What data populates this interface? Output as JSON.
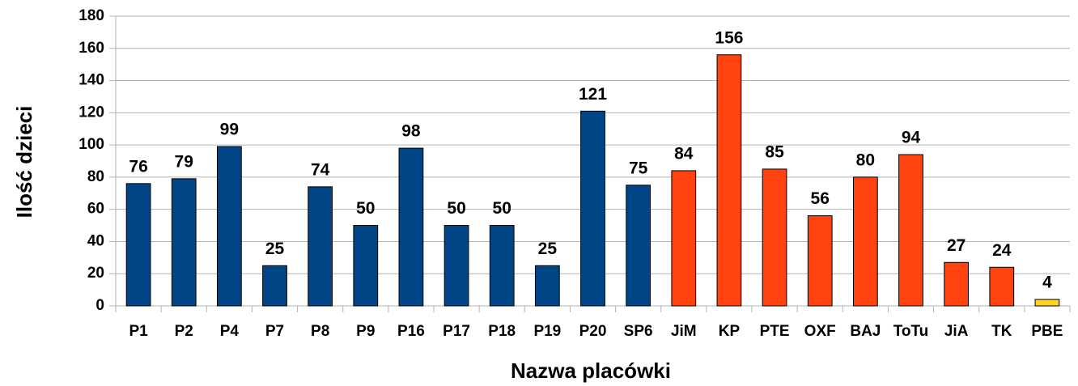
{
  "chart_data": {
    "type": "bar",
    "categories": [
      "P1",
      "P2",
      "P4",
      "P7",
      "P8",
      "P9",
      "P16",
      "P17",
      "P18",
      "P19",
      "P20",
      "SP6",
      "JiM",
      "KP",
      "PTE",
      "OXF",
      "BAJ",
      "ToTu",
      "JiA",
      "TK",
      "PBE"
    ],
    "values": [
      76,
      79,
      99,
      25,
      74,
      50,
      98,
      50,
      50,
      25,
      121,
      75,
      84,
      156,
      85,
      56,
      80,
      94,
      27,
      24,
      4
    ],
    "colors": [
      "#004586",
      "#004586",
      "#004586",
      "#004586",
      "#004586",
      "#004586",
      "#004586",
      "#004586",
      "#004586",
      "#004586",
      "#004586",
      "#004586",
      "#ff420e",
      "#ff420e",
      "#ff420e",
      "#ff420e",
      "#ff420e",
      "#ff420e",
      "#ff420e",
      "#ff420e",
      "#ffd320"
    ],
    "x_label": "Nazwa placówki",
    "y_label": "Ilość dzieci",
    "ylim": [
      0,
      180
    ],
    "yticks": [
      0,
      20,
      40,
      60,
      80,
      100,
      120,
      140,
      160,
      180
    ],
    "grid": true
  }
}
